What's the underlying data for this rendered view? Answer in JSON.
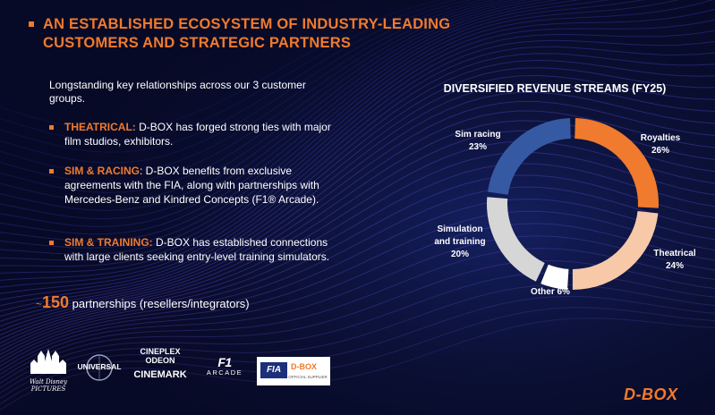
{
  "title": "AN ESTABLISHED ECOSYSTEM OF INDUSTRY-LEADING CUSTOMERS AND STRATEGIC PARTNERS",
  "intro": "Longstanding key relationships across our 3 customer groups.",
  "items": [
    {
      "head": "THEATRICAL:",
      "text": " D-BOX has forged strong ties with major film studios, exhibitors."
    },
    {
      "head": "SIM & RACING",
      "text": ":  D-BOX benefits from exclusive agreements with the FIA, along with partnerships with Mercedes-Benz and Kindred Concepts (F1® Arcade)."
    },
    {
      "head": "SIM & TRAINING:",
      "text": " D-BOX has established connections with large clients seeking entry-level training simulators."
    }
  ],
  "stat": {
    "tilde": "~",
    "number": "150",
    "label": " partnerships (resellers/integrators)"
  },
  "logos": {
    "disney": "Walt Disney PICTURES",
    "universal": "UNIVERSAL",
    "cineplex": "CINEPLEX",
    "odeon": "ODEON",
    "cinemark": "CINEMARK",
    "f1": "F1",
    "arcade": "ARCADE",
    "fia": "FIA",
    "fia_dbox": "D-BOX",
    "fia_supplier": "OFFICIAL SUPPLIER"
  },
  "brand": "D-BOX",
  "chart_data": {
    "type": "pie",
    "title": "DIVERSIFIED REVENUE STREAMS (FY25)",
    "categories": [
      "Royalties",
      "Theatrical",
      "Other",
      "Simulation and training",
      "Sim racing"
    ],
    "values": [
      26,
      24,
      6,
      20,
      23
    ],
    "labels": [
      "26%",
      "24%",
      "6%",
      "20%",
      "23%"
    ],
    "colors": [
      "#f07a2d",
      "#f8c9a8",
      "#ffffff",
      "#d6d6d6",
      "#3659a3"
    ]
  }
}
